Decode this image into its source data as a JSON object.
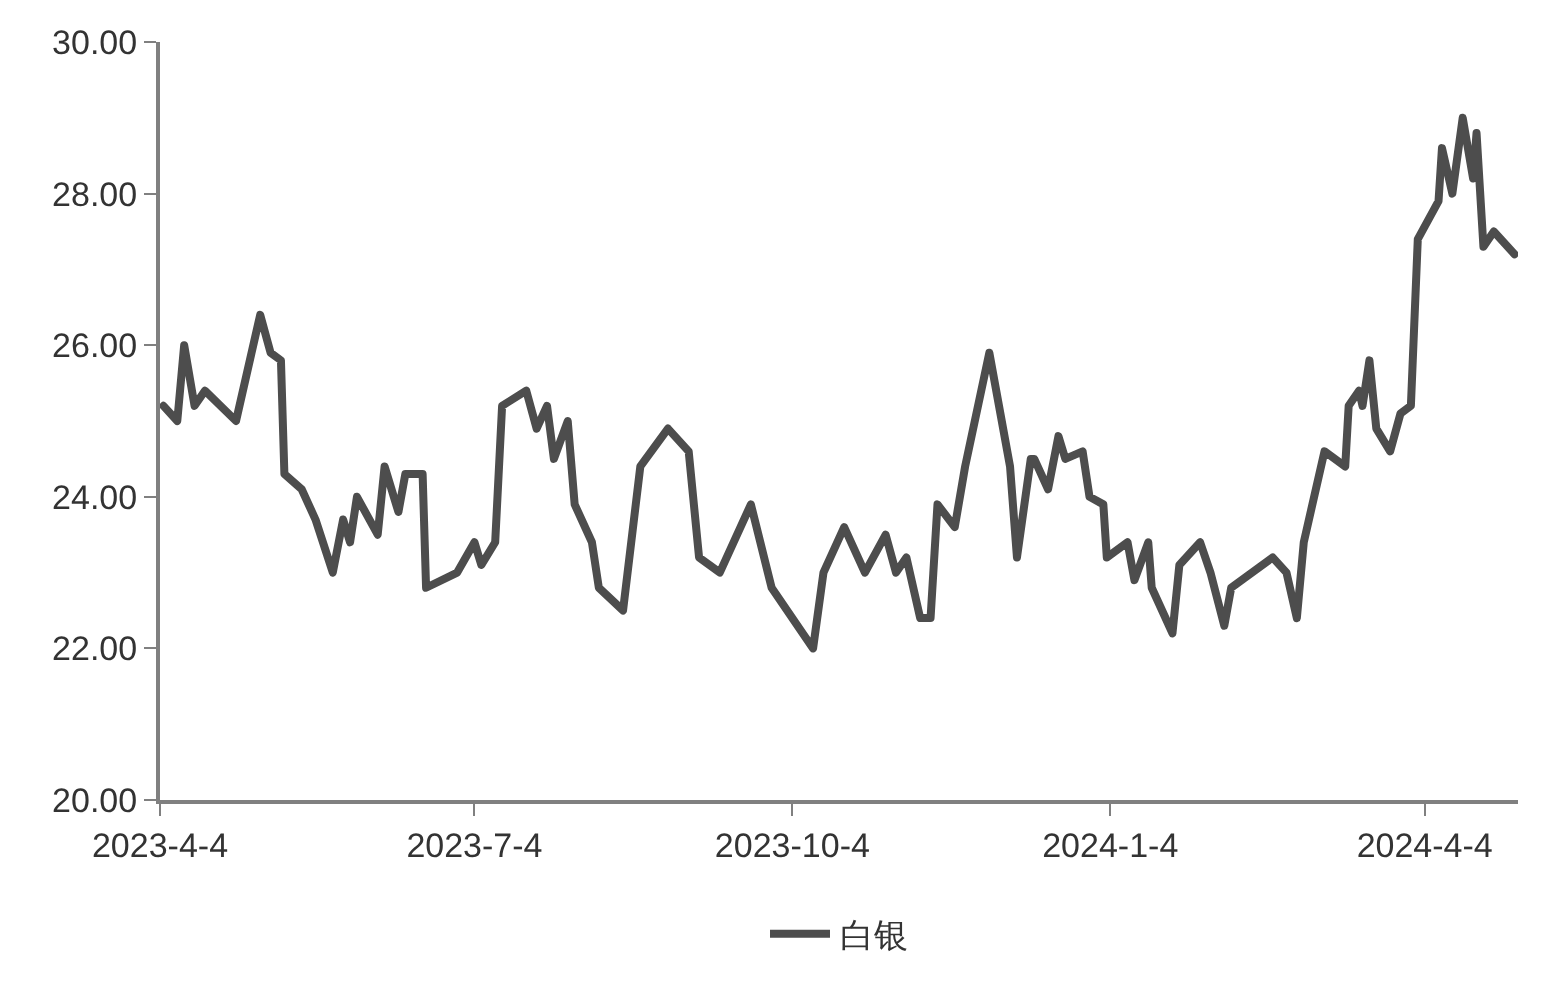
{
  "chart_data": {
    "type": "line",
    "x": [
      "2023-04-05",
      "2023-04-09",
      "2023-04-11",
      "2023-04-14",
      "2023-04-17",
      "2023-04-26",
      "2023-05-03",
      "2023-05-06",
      "2023-05-09",
      "2023-05-10",
      "2023-05-15",
      "2023-05-19",
      "2023-05-24",
      "2023-05-27",
      "2023-05-29",
      "2023-05-31",
      "2023-06-06",
      "2023-06-08",
      "2023-06-12",
      "2023-06-14",
      "2023-06-19",
      "2023-06-20",
      "2023-06-29",
      "2023-07-04",
      "2023-07-06",
      "2023-07-10",
      "2023-07-12",
      "2023-07-19",
      "2023-07-22",
      "2023-07-25",
      "2023-07-27",
      "2023-07-31",
      "2023-08-02",
      "2023-08-07",
      "2023-08-09",
      "2023-08-16",
      "2023-08-21",
      "2023-08-29",
      "2023-09-04",
      "2023-09-07",
      "2023-09-13",
      "2023-09-22",
      "2023-09-28",
      "2023-10-10",
      "2023-10-13",
      "2023-10-19",
      "2023-10-25",
      "2023-10-31",
      "2023-11-03",
      "2023-11-06",
      "2023-11-10",
      "2023-11-13",
      "2023-11-15",
      "2023-11-20",
      "2023-11-23",
      "2023-11-30",
      "2023-12-06",
      "2023-12-08",
      "2023-12-12",
      "2023-12-13",
      "2023-12-17",
      "2023-12-20",
      "2023-12-22",
      "2023-12-27",
      "2023-12-29",
      "2024-01-02",
      "2024-01-03",
      "2024-01-09",
      "2024-01-11",
      "2024-01-15",
      "2024-01-16",
      "2024-01-22",
      "2024-01-24",
      "2024-01-30",
      "2024-02-02",
      "2024-02-06",
      "2024-02-08",
      "2024-02-20",
      "2024-02-24",
      "2024-02-27",
      "2024-02-29",
      "2024-03-06",
      "2024-03-12",
      "2024-03-13",
      "2024-03-16",
      "2024-03-17",
      "2024-03-19",
      "2024-03-21",
      "2024-03-25",
      "2024-03-28",
      "2024-03-31",
      "2024-04-02",
      "2024-04-08",
      "2024-04-09",
      "2024-04-12",
      "2024-04-15",
      "2024-04-18",
      "2024-04-19",
      "2024-04-21",
      "2024-04-24",
      "2024-04-30"
    ],
    "series": [
      {
        "name": "白银",
        "color": "#4d4d4d",
        "values": [
          25.2,
          25.0,
          26.0,
          25.2,
          25.4,
          25.0,
          26.4,
          25.9,
          25.8,
          24.3,
          24.1,
          23.7,
          23.0,
          23.7,
          23.4,
          24.0,
          23.5,
          24.4,
          23.8,
          24.3,
          24.3,
          22.8,
          23.0,
          23.4,
          23.1,
          23.4,
          25.2,
          25.4,
          24.9,
          25.2,
          24.5,
          25.0,
          23.9,
          23.4,
          22.8,
          22.5,
          24.4,
          24.9,
          24.6,
          23.2,
          23.0,
          23.9,
          22.8,
          22.0,
          23.0,
          23.6,
          23.0,
          23.5,
          23.0,
          23.2,
          22.4,
          22.4,
          23.9,
          23.6,
          24.4,
          25.9,
          24.4,
          23.2,
          24.5,
          24.5,
          24.1,
          24.8,
          24.5,
          24.6,
          24.0,
          23.9,
          23.2,
          23.4,
          22.9,
          23.4,
          22.8,
          22.2,
          23.1,
          23.4,
          23.0,
          22.3,
          22.8,
          23.2,
          23.0,
          22.4,
          23.4,
          24.6,
          24.4,
          25.2,
          25.4,
          25.2,
          25.8,
          24.9,
          24.6,
          25.1,
          25.2,
          27.4,
          27.9,
          28.6,
          28.0,
          29.0,
          28.2,
          28.8,
          27.3,
          27.5,
          27.2
        ]
      }
    ],
    "xlim": [
      "2023-04-04",
      "2024-05-01"
    ],
    "xticks": [
      {
        "value": "2023-04-04",
        "label": "2023-4-4"
      },
      {
        "value": "2023-07-04",
        "label": "2023-7-4"
      },
      {
        "value": "2023-10-04",
        "label": "2023-10-4"
      },
      {
        "value": "2024-01-04",
        "label": "2024-1-4"
      },
      {
        "value": "2024-04-04",
        "label": "2024-4-4"
      }
    ],
    "ylim": [
      20,
      30
    ],
    "yticks": [
      {
        "value": 20,
        "label": "20.00"
      },
      {
        "value": 22,
        "label": "22.00"
      },
      {
        "value": 24,
        "label": "24.00"
      },
      {
        "value": 26,
        "label": "26.00"
      },
      {
        "value": 28,
        "label": "28.00"
      },
      {
        "value": 30,
        "label": "30.00"
      }
    ],
    "legend": "bottom",
    "marker": "none",
    "line_style": "solid"
  }
}
